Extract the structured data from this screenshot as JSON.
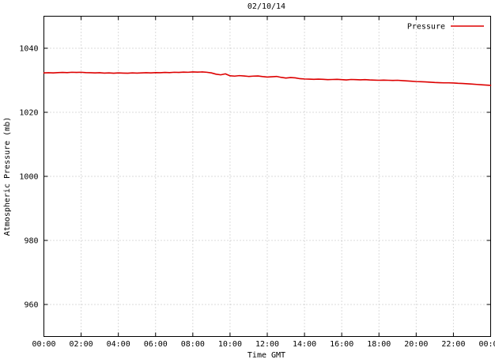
{
  "chart_data": {
    "type": "line",
    "title": "02/10/14",
    "xlabel": "Time GMT",
    "ylabel": "Atmospheric Pressure (mb)",
    "xlim": [
      0,
      24
    ],
    "ylim": [
      950,
      1050
    ],
    "grid": true,
    "legend_position": "top-right",
    "x_ticks": [
      {
        "hour": 0,
        "label": "00:00"
      },
      {
        "hour": 2,
        "label": "02:00"
      },
      {
        "hour": 4,
        "label": "04:00"
      },
      {
        "hour": 6,
        "label": "06:00"
      },
      {
        "hour": 8,
        "label": "08:00"
      },
      {
        "hour": 10,
        "label": "10:00"
      },
      {
        "hour": 12,
        "label": "12:00"
      },
      {
        "hour": 14,
        "label": "14:00"
      },
      {
        "hour": 16,
        "label": "16:00"
      },
      {
        "hour": 18,
        "label": "18:00"
      },
      {
        "hour": 20,
        "label": "20:00"
      },
      {
        "hour": 22,
        "label": "22:00"
      },
      {
        "hour": 24,
        "label": "00:00"
      }
    ],
    "y_ticks": [
      960,
      980,
      1000,
      1020,
      1040
    ],
    "series": [
      {
        "name": "Pressure",
        "color": "#dd0000",
        "points": [
          [
            0,
            1032.3
          ],
          [
            0.25,
            1032.35
          ],
          [
            0.5,
            1032.3
          ],
          [
            0.75,
            1032.4
          ],
          [
            1,
            1032.45
          ],
          [
            1.25,
            1032.4
          ],
          [
            1.5,
            1032.5
          ],
          [
            1.75,
            1032.45
          ],
          [
            2,
            1032.5
          ],
          [
            2.25,
            1032.4
          ],
          [
            2.5,
            1032.35
          ],
          [
            2.75,
            1032.3
          ],
          [
            3,
            1032.35
          ],
          [
            3.25,
            1032.25
          ],
          [
            3.5,
            1032.3
          ],
          [
            3.75,
            1032.2
          ],
          [
            4,
            1032.3
          ],
          [
            4.25,
            1032.25
          ],
          [
            4.5,
            1032.2
          ],
          [
            4.75,
            1032.3
          ],
          [
            5,
            1032.25
          ],
          [
            5.25,
            1032.3
          ],
          [
            5.5,
            1032.35
          ],
          [
            5.75,
            1032.3
          ],
          [
            6,
            1032.4
          ],
          [
            6.25,
            1032.35
          ],
          [
            6.5,
            1032.45
          ],
          [
            6.75,
            1032.4
          ],
          [
            7,
            1032.5
          ],
          [
            7.25,
            1032.45
          ],
          [
            7.5,
            1032.55
          ],
          [
            7.75,
            1032.5
          ],
          [
            8,
            1032.6
          ],
          [
            8.25,
            1032.55
          ],
          [
            8.5,
            1032.6
          ],
          [
            8.75,
            1032.5
          ],
          [
            9,
            1032.3
          ],
          [
            9.25,
            1031.9
          ],
          [
            9.5,
            1031.7
          ],
          [
            9.75,
            1032.0
          ],
          [
            10,
            1031.4
          ],
          [
            10.25,
            1031.3
          ],
          [
            10.5,
            1031.45
          ],
          [
            10.75,
            1031.35
          ],
          [
            11,
            1031.2
          ],
          [
            11.25,
            1031.3
          ],
          [
            11.5,
            1031.35
          ],
          [
            11.75,
            1031.15
          ],
          [
            12,
            1031.0
          ],
          [
            12.25,
            1031.1
          ],
          [
            12.5,
            1031.2
          ],
          [
            12.75,
            1030.9
          ],
          [
            13,
            1030.7
          ],
          [
            13.25,
            1030.85
          ],
          [
            13.5,
            1030.75
          ],
          [
            13.75,
            1030.5
          ],
          [
            14,
            1030.4
          ],
          [
            14.25,
            1030.35
          ],
          [
            14.5,
            1030.3
          ],
          [
            14.75,
            1030.35
          ],
          [
            15,
            1030.3
          ],
          [
            15.25,
            1030.2
          ],
          [
            15.5,
            1030.25
          ],
          [
            15.75,
            1030.3
          ],
          [
            16,
            1030.2
          ],
          [
            16.25,
            1030.1
          ],
          [
            16.5,
            1030.25
          ],
          [
            16.75,
            1030.2
          ],
          [
            17,
            1030.15
          ],
          [
            17.25,
            1030.2
          ],
          [
            17.5,
            1030.1
          ],
          [
            17.75,
            1030.05
          ],
          [
            18,
            1030.0
          ],
          [
            18.25,
            1030.05
          ],
          [
            18.5,
            1030.0
          ],
          [
            18.75,
            1029.95
          ],
          [
            19,
            1030.0
          ],
          [
            19.25,
            1029.9
          ],
          [
            19.5,
            1029.8
          ],
          [
            19.75,
            1029.7
          ],
          [
            20,
            1029.6
          ],
          [
            20.25,
            1029.55
          ],
          [
            20.5,
            1029.5
          ],
          [
            20.75,
            1029.4
          ],
          [
            21,
            1029.3
          ],
          [
            21.25,
            1029.25
          ],
          [
            21.5,
            1029.2
          ],
          [
            21.75,
            1029.2
          ],
          [
            22,
            1029.15
          ],
          [
            22.25,
            1029.05
          ],
          [
            22.5,
            1029.0
          ],
          [
            22.75,
            1028.9
          ],
          [
            23,
            1028.8
          ],
          [
            23.25,
            1028.7
          ],
          [
            23.5,
            1028.6
          ],
          [
            23.75,
            1028.5
          ],
          [
            24,
            1028.4
          ]
        ]
      }
    ]
  },
  "colors": {
    "background": "#ffffff",
    "border": "#000000",
    "grid": "#b8b8b8",
    "text": "#000000"
  }
}
